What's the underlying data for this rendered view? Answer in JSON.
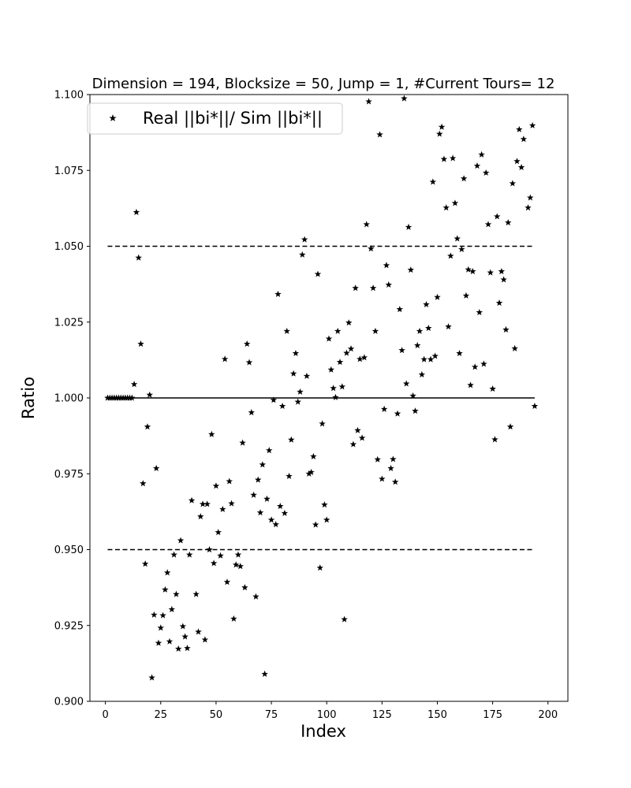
{
  "chart_data": {
    "type": "scatter",
    "title": "Dimension = 194, Blocksize = 50, Jump = 1, #Current Tours= 12",
    "xlabel": "Index",
    "ylabel": "Ratio",
    "xlim": [
      -7,
      209
    ],
    "ylim": [
      0.9,
      1.1
    ],
    "xticks": [
      0,
      25,
      50,
      75,
      100,
      125,
      150,
      175,
      200
    ],
    "xtick_labels": [
      "0",
      "25",
      "50",
      "75",
      "100",
      "125",
      "150",
      "175",
      "200"
    ],
    "yticks": [
      0.9,
      0.925,
      0.95,
      0.975,
      1.0,
      1.025,
      1.05,
      1.075,
      1.1
    ],
    "ytick_labels": [
      "0.900",
      "0.925",
      "0.950",
      "0.975",
      "1.000",
      "1.025",
      "1.050",
      "1.075",
      "1.100"
    ],
    "grid": false,
    "legend": {
      "position": "top-left",
      "entries": [
        "Real ||bi*||/ Sim ||bi*||"
      ]
    },
    "reference_lines": [
      {
        "y": 1.05,
        "style": "dashed",
        "x_range": [
          1,
          194
        ]
      },
      {
        "y": 1.0,
        "style": "solid",
        "x_range": [
          1,
          194
        ]
      },
      {
        "y": 0.95,
        "style": "dashed",
        "x_range": [
          1,
          194
        ]
      }
    ],
    "series": [
      {
        "name": "Real ||bi*||/ Sim ||bi*||",
        "marker": "star",
        "color": "#000000",
        "points": [
          [
            1,
            1.0
          ],
          [
            2,
            1.0
          ],
          [
            3,
            1.0
          ],
          [
            4,
            1.0
          ],
          [
            5,
            1.0
          ],
          [
            6,
            1.0
          ],
          [
            7,
            1.0
          ],
          [
            8,
            1.0
          ],
          [
            9,
            1.0
          ],
          [
            10,
            1.0
          ],
          [
            11,
            1.0
          ],
          [
            12,
            1.0
          ],
          [
            13,
            1.0045
          ],
          [
            14,
            1.0612
          ],
          [
            15,
            1.0462
          ],
          [
            16,
            1.0178
          ],
          [
            17,
            0.9718
          ],
          [
            18,
            0.9453
          ],
          [
            19,
            0.9905
          ],
          [
            20,
            1.001
          ],
          [
            21,
            0.9078
          ],
          [
            22,
            0.9285
          ],
          [
            23,
            0.9768
          ],
          [
            24,
            0.9192
          ],
          [
            25,
            0.9242
          ],
          [
            26,
            0.9283
          ],
          [
            27,
            0.9368
          ],
          [
            28,
            0.9424
          ],
          [
            29,
            0.9197
          ],
          [
            30,
            0.9303
          ],
          [
            31,
            0.9483
          ],
          [
            32,
            0.9353
          ],
          [
            33,
            0.9173
          ],
          [
            34,
            0.953
          ],
          [
            35,
            0.9247
          ],
          [
            36,
            0.9213
          ],
          [
            37,
            0.9175
          ],
          [
            38,
            0.9483
          ],
          [
            39,
            0.9662
          ],
          [
            41,
            0.9353
          ],
          [
            42,
            0.9229
          ],
          [
            43,
            0.9609
          ],
          [
            44,
            0.965
          ],
          [
            45,
            0.9203
          ],
          [
            46,
            0.965
          ],
          [
            47,
            0.95
          ],
          [
            48,
            0.988
          ],
          [
            49,
            0.9455
          ],
          [
            50,
            0.971
          ],
          [
            51,
            0.9557
          ],
          [
            52,
            0.948
          ],
          [
            53,
            0.9633
          ],
          [
            54,
            1.0128
          ],
          [
            55,
            0.9393
          ],
          [
            56,
            0.9725
          ],
          [
            57,
            0.9652
          ],
          [
            58,
            0.9272
          ],
          [
            59,
            0.945
          ],
          [
            60,
            0.9483
          ],
          [
            61,
            0.9445
          ],
          [
            62,
            0.9852
          ],
          [
            63,
            0.9375
          ],
          [
            64,
            1.0178
          ],
          [
            65,
            1.0117
          ],
          [
            66,
            0.9952
          ],
          [
            67,
            0.968
          ],
          [
            68,
            0.9345
          ],
          [
            69,
            0.973
          ],
          [
            70,
            0.9622
          ],
          [
            71,
            0.978
          ],
          [
            72,
            0.909
          ],
          [
            73,
            0.9667
          ],
          [
            74,
            0.9827
          ],
          [
            75,
            0.9598
          ],
          [
            76,
            0.9993
          ],
          [
            77,
            0.9583
          ],
          [
            78,
            1.0342
          ],
          [
            79,
            0.9643
          ],
          [
            80,
            0.9973
          ],
          [
            81,
            0.962
          ],
          [
            82,
            1.022
          ],
          [
            83,
            0.9742
          ],
          [
            84,
            0.9862
          ],
          [
            85,
            1.008
          ],
          [
            86,
            1.0147
          ],
          [
            87,
            0.9987
          ],
          [
            88,
            1.002
          ],
          [
            89,
            1.0472
          ],
          [
            90,
            1.0522
          ],
          [
            91,
            1.0072
          ],
          [
            92,
            0.975
          ],
          [
            93,
            0.9755
          ],
          [
            94,
            0.9807
          ],
          [
            95,
            0.9582
          ],
          [
            96,
            1.0408
          ],
          [
            97,
            0.944
          ],
          [
            98,
            0.9915
          ],
          [
            99,
            0.9648
          ],
          [
            100,
            0.9598
          ],
          [
            101,
            1.0195
          ],
          [
            102,
            1.0093
          ],
          [
            103,
            1.0032
          ],
          [
            104,
            1.0002
          ],
          [
            105,
            1.022
          ],
          [
            106,
            1.0118
          ],
          [
            107,
            1.0037
          ],
          [
            108,
            0.927
          ],
          [
            109,
            1.0148
          ],
          [
            110,
            1.0248
          ],
          [
            111,
            1.0162
          ],
          [
            112,
            0.9847
          ],
          [
            113,
            1.0362
          ],
          [
            114,
            0.9893
          ],
          [
            115,
            1.0128
          ],
          [
            116,
            0.9868
          ],
          [
            117,
            1.0133
          ],
          [
            118,
            1.0572
          ],
          [
            119,
            1.0977
          ],
          [
            120,
            1.0492
          ],
          [
            121,
            1.0362
          ],
          [
            122,
            1.022
          ],
          [
            123,
            0.9797
          ],
          [
            124,
            1.0868
          ],
          [
            125,
            0.9733
          ],
          [
            126,
            0.9963
          ],
          [
            127,
            1.0437
          ],
          [
            128,
            1.0373
          ],
          [
            129,
            0.9768
          ],
          [
            130,
            0.9798
          ],
          [
            131,
            0.9723
          ],
          [
            132,
            0.9948
          ],
          [
            133,
            1.0292
          ],
          [
            134,
            1.0157
          ],
          [
            135,
            1.0987
          ],
          [
            136,
            1.0047
          ],
          [
            137,
            1.0563
          ],
          [
            138,
            1.0422
          ],
          [
            139,
            1.0007
          ],
          [
            140,
            0.9957
          ],
          [
            141,
            1.0173
          ],
          [
            142,
            1.022
          ],
          [
            143,
            1.0077
          ],
          [
            144,
            1.0127
          ],
          [
            145,
            1.0308
          ],
          [
            146,
            1.023
          ],
          [
            147,
            1.0127
          ],
          [
            148,
            1.0712
          ],
          [
            149,
            1.0138
          ],
          [
            150,
            1.0332
          ],
          [
            151,
            1.087
          ],
          [
            152,
            1.0893
          ],
          [
            153,
            1.0787
          ],
          [
            154,
            1.0627
          ],
          [
            155,
            1.0235
          ],
          [
            156,
            1.0468
          ],
          [
            157,
            1.079
          ],
          [
            158,
            1.0642
          ],
          [
            159,
            1.0525
          ],
          [
            160,
            1.0147
          ],
          [
            161,
            1.049
          ],
          [
            162,
            1.0723
          ],
          [
            163,
            1.0337
          ],
          [
            164,
            1.0423
          ],
          [
            165,
            1.0042
          ],
          [
            166,
            1.0417
          ],
          [
            167,
            1.0102
          ],
          [
            168,
            1.0765
          ],
          [
            169,
            1.0282
          ],
          [
            170,
            1.0802
          ],
          [
            171,
            1.0112
          ],
          [
            172,
            1.0742
          ],
          [
            173,
            1.0572
          ],
          [
            174,
            1.0413
          ],
          [
            175,
            1.003
          ],
          [
            176,
            0.9863
          ],
          [
            177,
            1.0598
          ],
          [
            178,
            1.0313
          ],
          [
            179,
            1.0417
          ],
          [
            180,
            1.039
          ],
          [
            181,
            1.0225
          ],
          [
            182,
            1.0578
          ],
          [
            183,
            0.9905
          ],
          [
            184,
            1.0707
          ],
          [
            185,
            1.0163
          ],
          [
            186,
            1.078
          ],
          [
            187,
            1.0885
          ],
          [
            188,
            1.076
          ],
          [
            189,
            1.0853
          ],
          [
            191,
            1.0627
          ],
          [
            192,
            1.066
          ],
          [
            193,
            1.0898
          ],
          [
            194,
            0.9973
          ]
        ]
      }
    ]
  }
}
